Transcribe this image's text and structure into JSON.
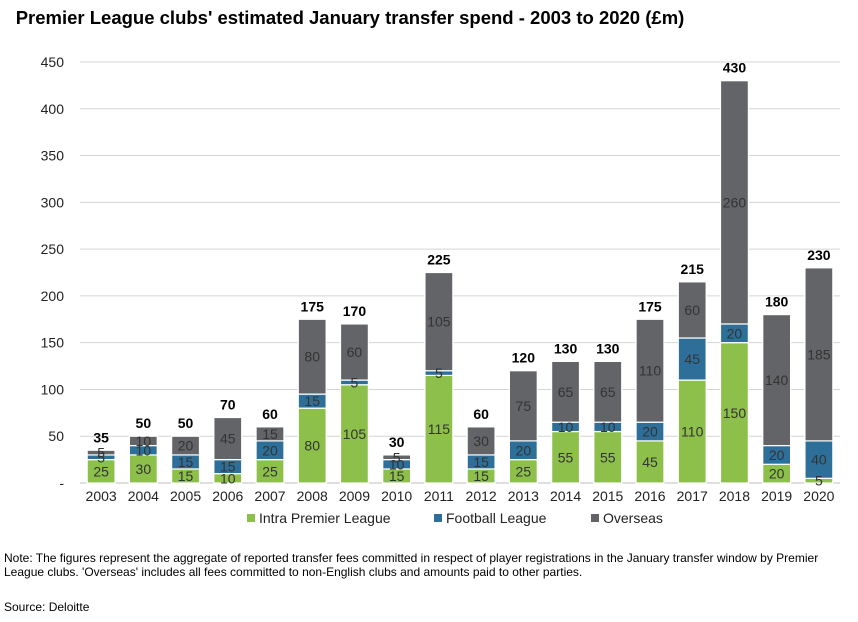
{
  "chart_data": {
    "type": "bar",
    "stacked": true,
    "title": "Premier League clubs' estimated January transfer spend - 2003 to 2020 (£m)",
    "xlabel": "",
    "ylabel": "",
    "ylim": [
      0,
      450
    ],
    "yticks": [
      0,
      50,
      100,
      150,
      200,
      250,
      300,
      350,
      400,
      450
    ],
    "ytick_labels": [
      "-",
      "50",
      "100",
      "150",
      "200",
      "250",
      "300",
      "350",
      "400",
      "450"
    ],
    "grid": true,
    "legend_position": "bottom",
    "categories": [
      "2003",
      "2004",
      "2005",
      "2006",
      "2007",
      "2008",
      "2009",
      "2010",
      "2011",
      "2012",
      "2013",
      "2014",
      "2015",
      "2016",
      "2017",
      "2018",
      "2019",
      "2020"
    ],
    "series": [
      {
        "name": "Intra Premier League",
        "color": "#8dc04a",
        "values": [
          25,
          30,
          15,
          10,
          25,
          80,
          105,
          15,
          115,
          15,
          25,
          55,
          55,
          45,
          110,
          150,
          20,
          5
        ]
      },
      {
        "name": "Football League",
        "color": "#2e6f99",
        "values": [
          5,
          10,
          15,
          15,
          20,
          15,
          5,
          10,
          5,
          15,
          20,
          10,
          10,
          20,
          45,
          20,
          20,
          40
        ]
      },
      {
        "name": "Overseas",
        "color": "#626467",
        "values": [
          5,
          10,
          20,
          45,
          15,
          80,
          60,
          5,
          105,
          30,
          75,
          65,
          65,
          110,
          60,
          260,
          140,
          185
        ]
      }
    ],
    "totals": [
      35,
      50,
      50,
      70,
      60,
      175,
      170,
      30,
      225,
      60,
      120,
      130,
      130,
      175,
      215,
      430,
      180,
      230
    ]
  },
  "note": "Note: The figures represent the aggregate of reported transfer fees committed in respect of player registrations in the January transfer window by Premier League clubs. 'Overseas' includes all fees committed to non-English clubs and amounts paid to other parties.",
  "source": "Source: Deloitte"
}
